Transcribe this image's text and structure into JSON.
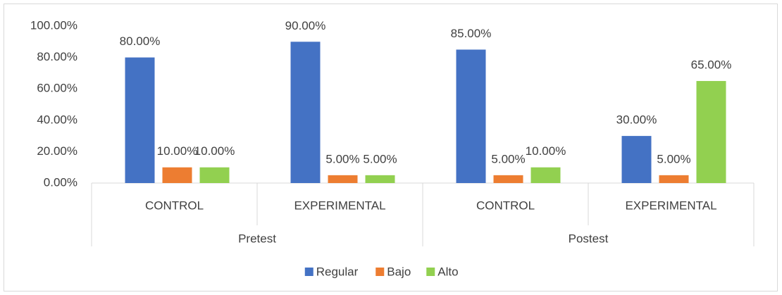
{
  "chart_data": {
    "type": "bar",
    "categories": [
      "CONTROL",
      "EXPERIMENTAL",
      "CONTROL",
      "EXPERIMENTAL"
    ],
    "groups": [
      "Pretest",
      "Postest"
    ],
    "series": [
      {
        "name": "Regular",
        "color": "#4472c4",
        "values": [
          80,
          90,
          85,
          30
        ],
        "value_labels": [
          "80.00%",
          "90.00%",
          "85.00%",
          "30.00%"
        ]
      },
      {
        "name": "Bajo",
        "color": "#ed7d31",
        "values": [
          10,
          5,
          5,
          5
        ],
        "value_labels": [
          "10.00%",
          "5.00%",
          "5.00%",
          "5.00%"
        ]
      },
      {
        "name": "Alto",
        "color": "#92d050",
        "values": [
          10,
          5,
          10,
          65
        ],
        "value_labels": [
          "10.00%",
          "5.00%",
          "10.00%",
          "65.00%"
        ]
      }
    ],
    "ylim": [
      0,
      100
    ],
    "yticks": [
      {
        "value": 0,
        "label": "0.00%"
      },
      {
        "value": 20,
        "label": "20.00%"
      },
      {
        "value": 40,
        "label": "40.00%"
      },
      {
        "value": 60,
        "label": "60.00%"
      },
      {
        "value": 80,
        "label": "80.00%"
      },
      {
        "value": 100,
        "label": "100.00%"
      }
    ],
    "grid": false,
    "legend": "bottom"
  }
}
